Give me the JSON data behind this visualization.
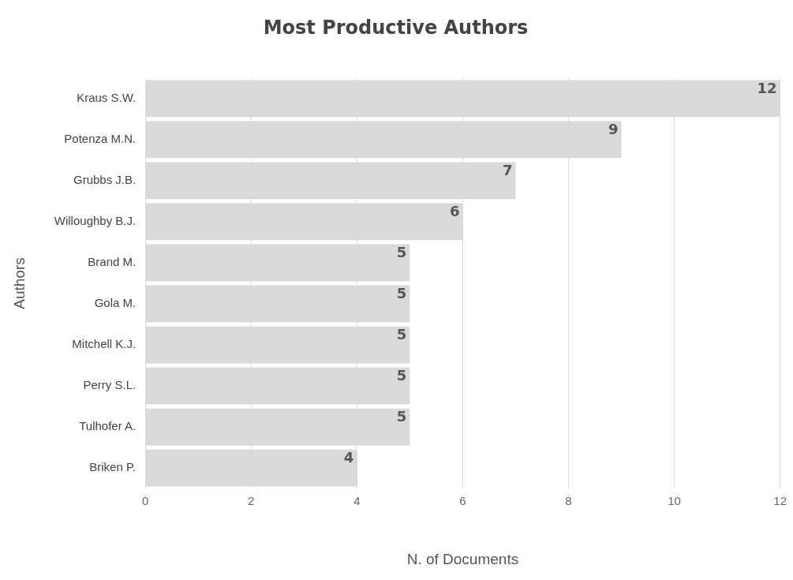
{
  "chart_data": {
    "type": "bar",
    "orientation": "horizontal",
    "title": "Most Productive Authors",
    "xlabel": "N. of Documents",
    "ylabel": "Authors",
    "categories": [
      "Kraus S.W.",
      "Potenza M.N.",
      "Grubbs J.B.",
      "Willoughby B.J.",
      "Brand M.",
      "Gola M.",
      "Mitchell K.J.",
      "Perry S.L.",
      "Tulhofer A.",
      "Briken P."
    ],
    "values": [
      12,
      9,
      7,
      6,
      5,
      5,
      5,
      5,
      5,
      4
    ],
    "color": "#d9d9d9",
    "xlim": [
      0,
      12
    ],
    "xticks": [
      0,
      2,
      4,
      6,
      8,
      10,
      12
    ],
    "grid": "x",
    "legend": false,
    "data_labels": true
  }
}
